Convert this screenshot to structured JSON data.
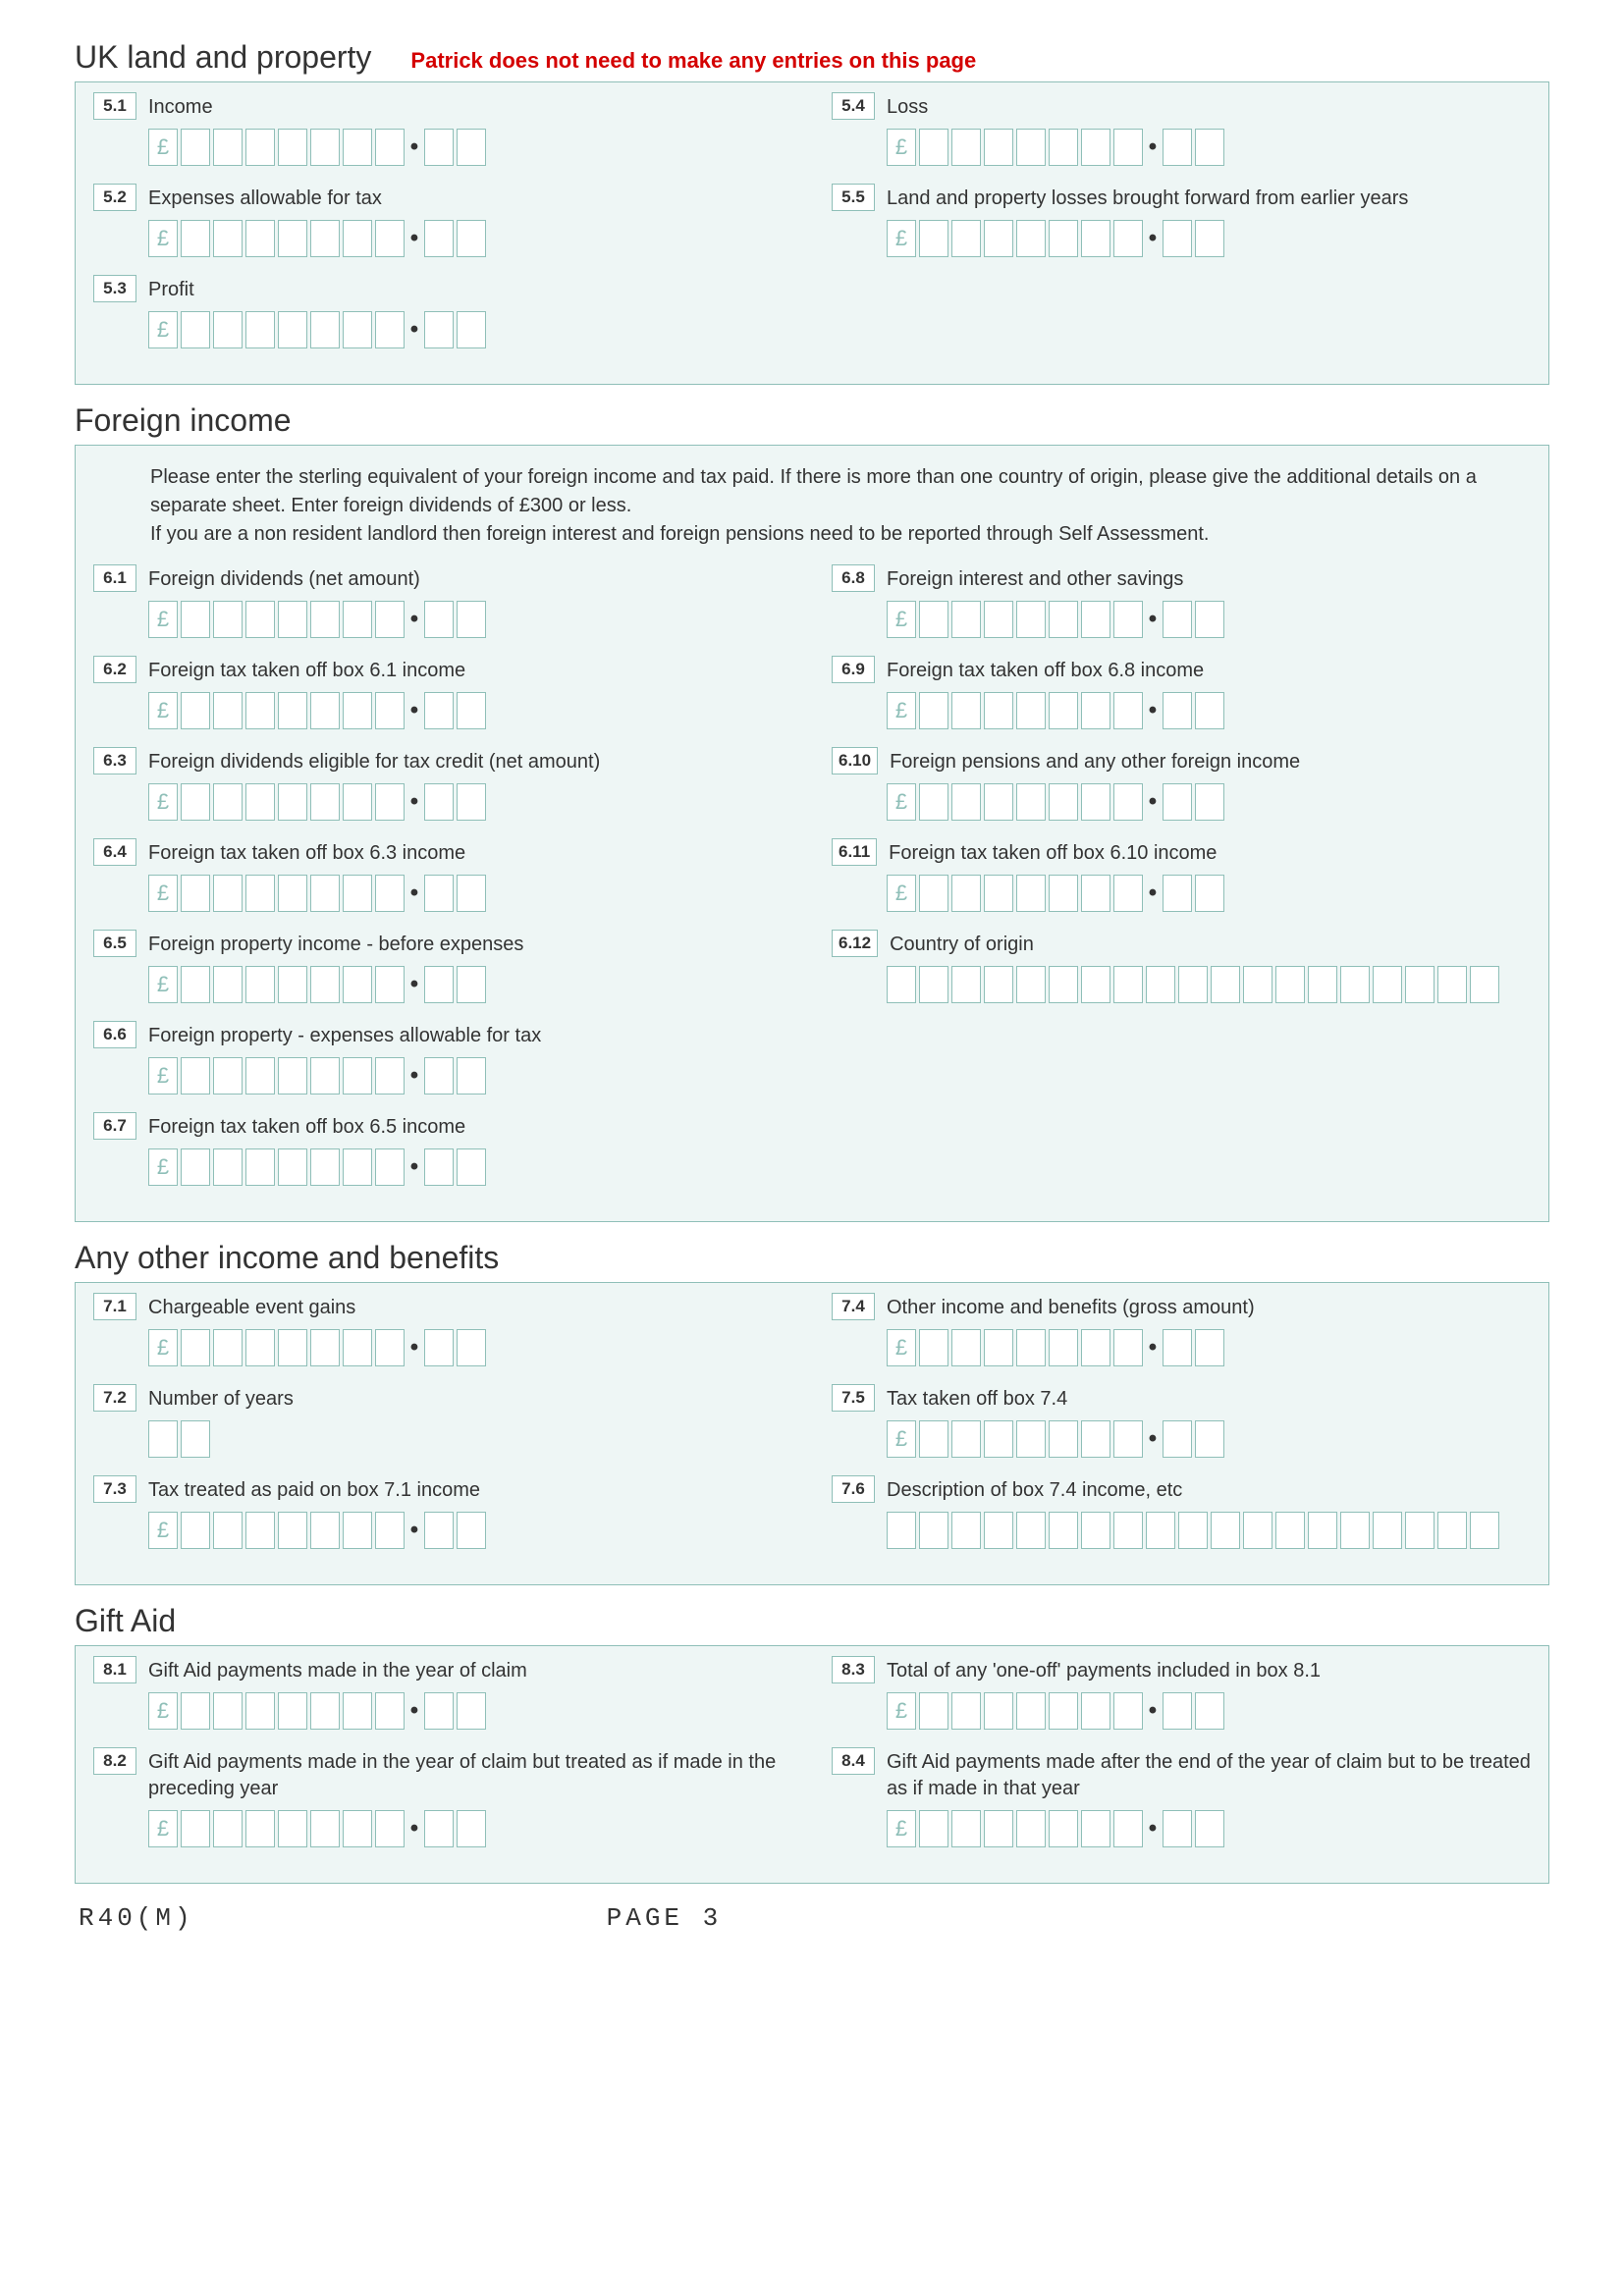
{
  "colors": {
    "panel_bg": "#eef6f5",
    "panel_border": "#8fbfb8",
    "text": "#333333",
    "red": "#d40000",
    "cell_border": "#8fbfb8",
    "pound": "#8fbfb8"
  },
  "pound": "£",
  "decimal": "•",
  "sections": {
    "uk": {
      "title": "UK land and property",
      "note": "Patrick does not need to make any entries on this page",
      "left": [
        {
          "num": "5.1",
          "label": "Income",
          "type": "money"
        },
        {
          "num": "5.2",
          "label": "Expenses allowable for tax",
          "type": "money"
        },
        {
          "num": "5.3",
          "label": "Profit",
          "type": "money"
        }
      ],
      "right": [
        {
          "num": "5.4",
          "label": "Loss",
          "type": "money"
        },
        {
          "num": "5.5",
          "label": "Land and property losses brought forward from earlier years",
          "type": "money"
        }
      ]
    },
    "foreign": {
      "title": "Foreign income",
      "intro": "Please enter the sterling equivalent of your foreign income and tax paid. If there is more than one country of origin, please give the additional details on a separate sheet. Enter foreign dividends of £300 or less.\nIf you are a non resident landlord then foreign interest and foreign pensions need to be reported through Self Assessment.",
      "left": [
        {
          "num": "6.1",
          "label": "Foreign dividends (net amount)",
          "type": "money"
        },
        {
          "num": "6.2",
          "label": "Foreign tax taken off box 6.1 income",
          "type": "money"
        },
        {
          "num": "6.3",
          "label": "Foreign dividends eligible for tax credit (net amount)",
          "type": "money"
        },
        {
          "num": "6.4",
          "label": "Foreign tax taken off box 6.3 income",
          "type": "money"
        },
        {
          "num": "6.5",
          "label": "Foreign property income - before expenses",
          "type": "money"
        },
        {
          "num": "6.6",
          "label": "Foreign property - expenses allowable for tax",
          "type": "money"
        },
        {
          "num": "6.7",
          "label": "Foreign tax taken off box 6.5 income",
          "type": "money"
        }
      ],
      "right": [
        {
          "num": "6.8",
          "label": "Foreign interest and other savings",
          "type": "money"
        },
        {
          "num": "6.9",
          "label": "Foreign tax taken off box 6.8 income",
          "type": "money"
        },
        {
          "num": "6.10",
          "label": "Foreign pensions and any other foreign income",
          "type": "money"
        },
        {
          "num": "6.11",
          "label": "Foreign tax taken off box 6.10 income",
          "type": "money"
        },
        {
          "num": "6.12",
          "label": "Country of origin",
          "type": "text",
          "cells": 19
        }
      ]
    },
    "other": {
      "title": "Any other income and benefits",
      "left": [
        {
          "num": "7.1",
          "label": "Chargeable event gains",
          "type": "money"
        },
        {
          "num": "7.2",
          "label": "Number of years",
          "type": "num",
          "cells": 2
        },
        {
          "num": "7.3",
          "label": "Tax treated as paid on box 7.1 income",
          "type": "money"
        }
      ],
      "right": [
        {
          "num": "7.4",
          "label": "Other income and benefits (gross amount)",
          "type": "money"
        },
        {
          "num": "7.5",
          "label": "Tax taken off box 7.4",
          "type": "money"
        },
        {
          "num": "7.6",
          "label": "Description of box 7.4 income, etc",
          "type": "text",
          "cells": 19
        }
      ]
    },
    "gift": {
      "title": "Gift Aid",
      "left": [
        {
          "num": "8.1",
          "label": "Gift Aid payments made in the year of claim",
          "type": "money"
        },
        {
          "num": "8.2",
          "label": "Gift Aid payments made in the year of claim but treated as if made in the preceding year",
          "type": "money"
        }
      ],
      "right": [
        {
          "num": "8.3",
          "label": "Total of any 'one-off' payments included in box 8.1",
          "type": "money"
        },
        {
          "num": "8.4",
          "label": "Gift Aid payments made after the end of the year of claim but to be treated as if made in that year",
          "type": "money"
        }
      ]
    }
  },
  "footer": {
    "form": "R40(M)",
    "page": "PAGE 3"
  },
  "money_layout": {
    "int_cells": 7,
    "dec_cells": 2
  }
}
